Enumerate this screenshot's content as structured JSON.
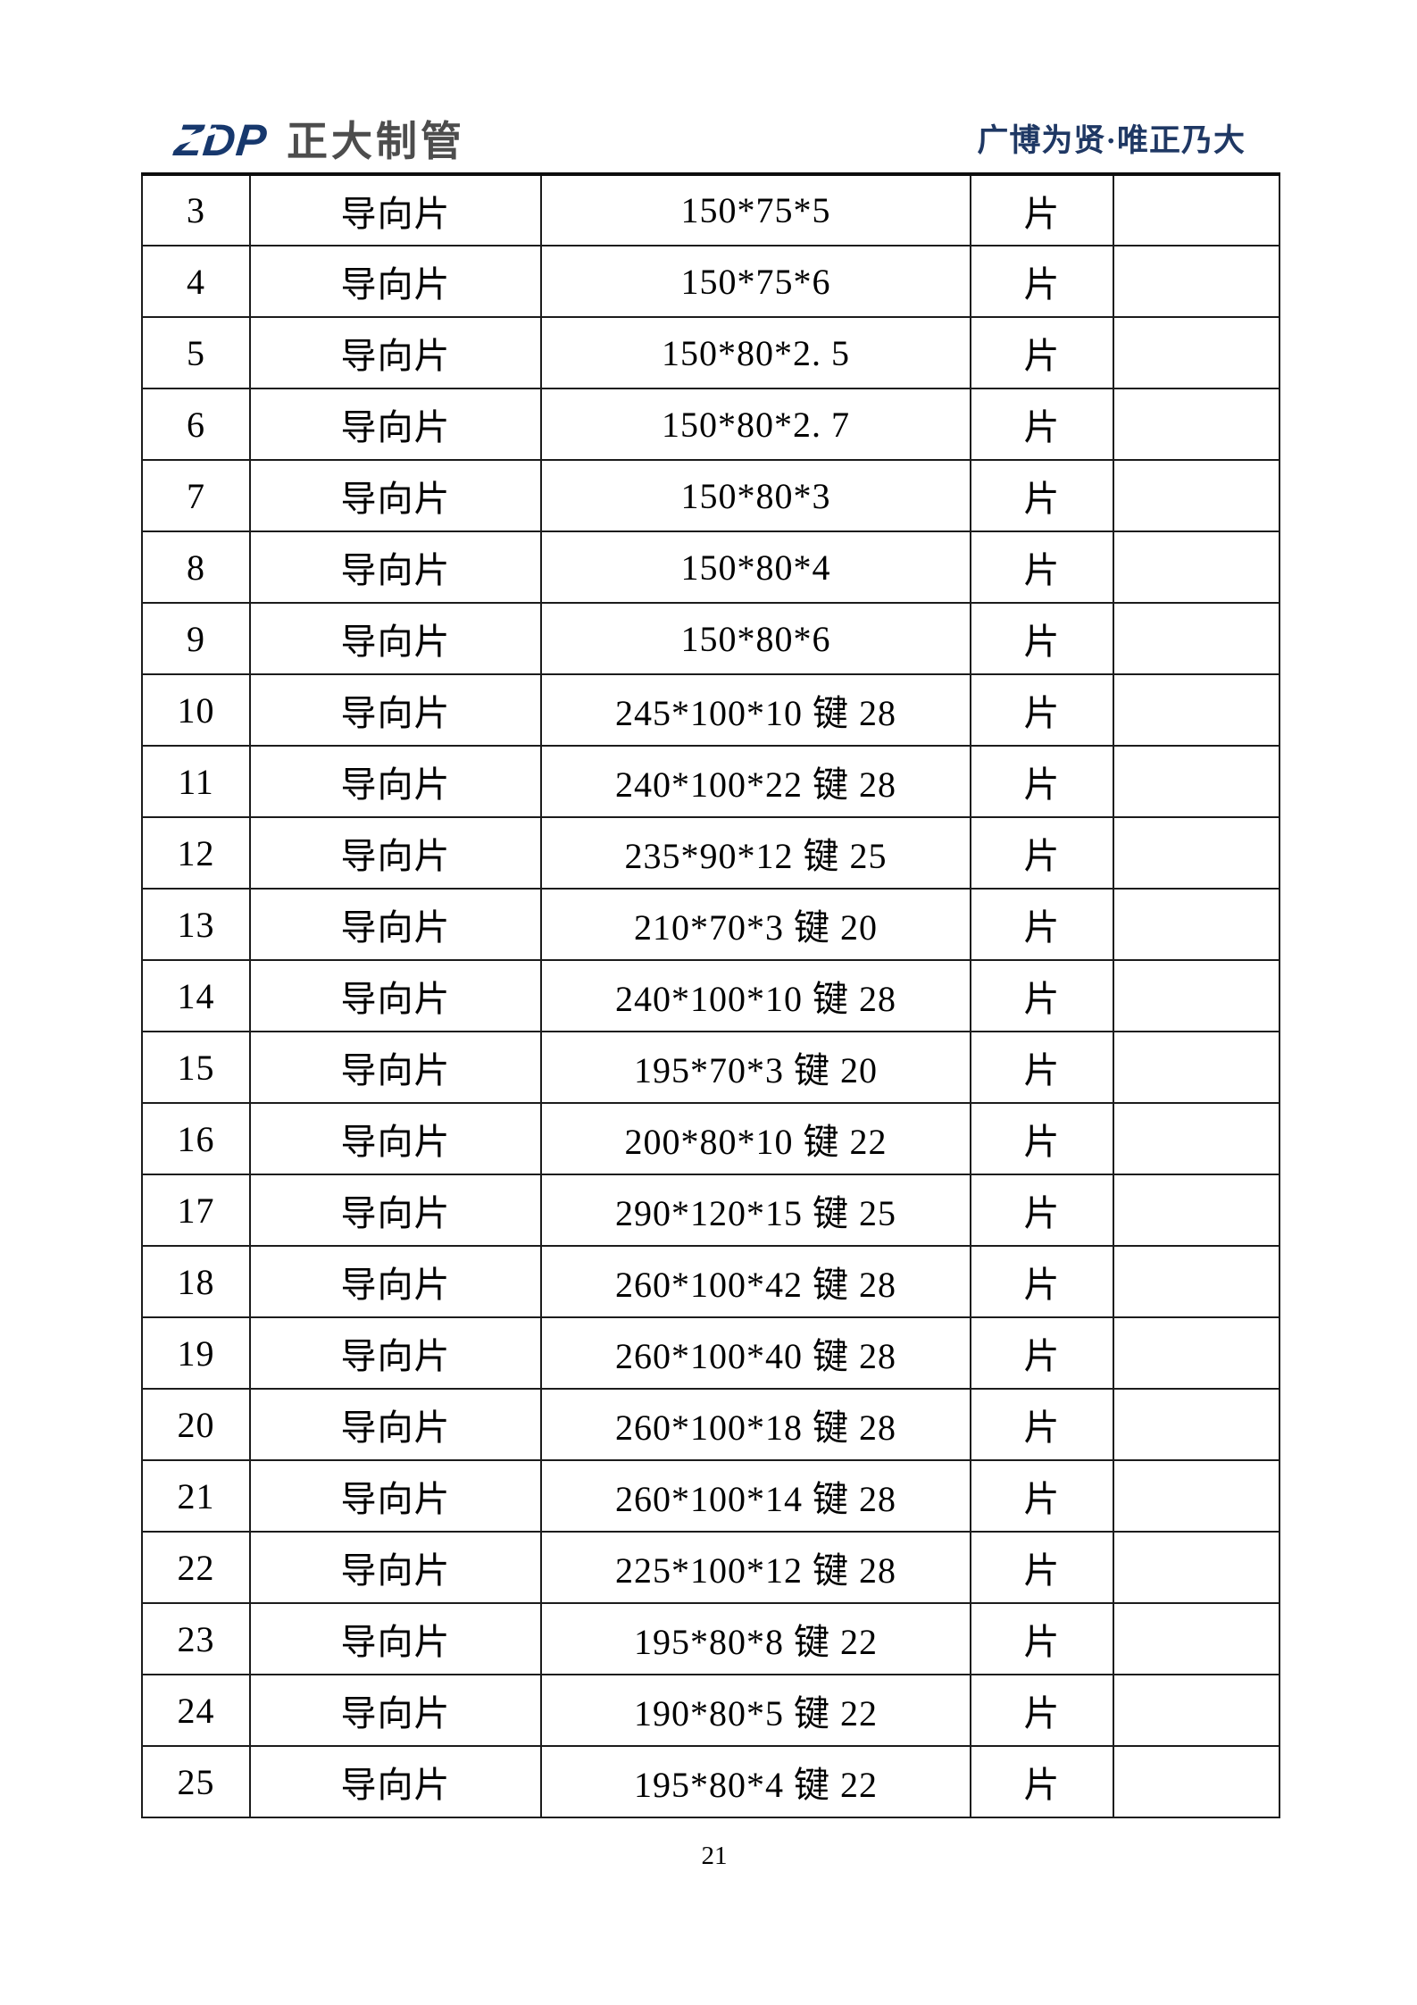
{
  "header": {
    "logo_text": "ZDP",
    "logo_company_name": "正大制管",
    "slogan": "广博为贤·唯正乃大",
    "logo_color": "#17386d",
    "logo_company_color": "#4d4d4d",
    "slogan_color": "#1f3864"
  },
  "table": {
    "columns": [
      "no",
      "name",
      "spec",
      "unit",
      "note"
    ],
    "rows": [
      {
        "no": "3",
        "name": "导向片",
        "spec": "150*75*5",
        "unit": "片",
        "note": ""
      },
      {
        "no": "4",
        "name": "导向片",
        "spec": "150*75*6",
        "unit": "片",
        "note": ""
      },
      {
        "no": "5",
        "name": "导向片",
        "spec": "150*80*2. 5",
        "unit": "片",
        "note": ""
      },
      {
        "no": "6",
        "name": "导向片",
        "spec": "150*80*2. 7",
        "unit": "片",
        "note": ""
      },
      {
        "no": "7",
        "name": "导向片",
        "spec": "150*80*3",
        "unit": "片",
        "note": ""
      },
      {
        "no": "8",
        "name": "导向片",
        "spec": "150*80*4",
        "unit": "片",
        "note": ""
      },
      {
        "no": "9",
        "name": "导向片",
        "spec": "150*80*6",
        "unit": "片",
        "note": ""
      },
      {
        "no": "10",
        "name": "导向片",
        "spec": "245*100*10 键 28",
        "unit": "片",
        "note": ""
      },
      {
        "no": "11",
        "name": "导向片",
        "spec": "240*100*22 键 28",
        "unit": "片",
        "note": ""
      },
      {
        "no": "12",
        "name": "导向片",
        "spec": "235*90*12 键 25",
        "unit": "片",
        "note": ""
      },
      {
        "no": "13",
        "name": "导向片",
        "spec": "210*70*3 键 20",
        "unit": "片",
        "note": ""
      },
      {
        "no": "14",
        "name": "导向片",
        "spec": "240*100*10 键 28",
        "unit": "片",
        "note": ""
      },
      {
        "no": "15",
        "name": "导向片",
        "spec": "195*70*3 键 20",
        "unit": "片",
        "note": ""
      },
      {
        "no": "16",
        "name": "导向片",
        "spec": "200*80*10 键 22",
        "unit": "片",
        "note": ""
      },
      {
        "no": "17",
        "name": "导向片",
        "spec": "290*120*15 键 25",
        "unit": "片",
        "note": ""
      },
      {
        "no": "18",
        "name": "导向片",
        "spec": "260*100*42 键 28",
        "unit": "片",
        "note": ""
      },
      {
        "no": "19",
        "name": "导向片",
        "spec": "260*100*40 键 28",
        "unit": "片",
        "note": ""
      },
      {
        "no": "20",
        "name": "导向片",
        "spec": "260*100*18 键 28",
        "unit": "片",
        "note": ""
      },
      {
        "no": "21",
        "name": "导向片",
        "spec": "260*100*14 键 28",
        "unit": "片",
        "note": ""
      },
      {
        "no": "22",
        "name": "导向片",
        "spec": "225*100*12 键 28",
        "unit": "片",
        "note": ""
      },
      {
        "no": "23",
        "name": "导向片",
        "spec": "195*80*8 键 22",
        "unit": "片",
        "note": ""
      },
      {
        "no": "24",
        "name": "导向片",
        "spec": "190*80*5 键 22",
        "unit": "片",
        "note": ""
      },
      {
        "no": "25",
        "name": "导向片",
        "spec": "195*80*4 键 22",
        "unit": "片",
        "note": ""
      }
    ]
  },
  "footer": {
    "page_number": "21"
  }
}
